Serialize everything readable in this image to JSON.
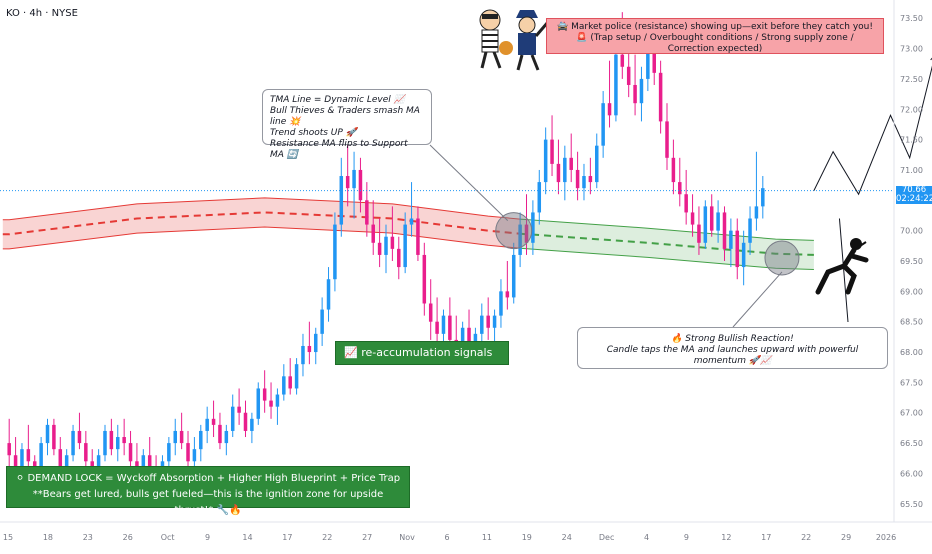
{
  "header": {
    "symbol_label": "KO · 4h · NYSE"
  },
  "annotations": {
    "tma": {
      "lines": [
        "TMA Line = Dynamic Level 📈",
        "Bull Thieves & Traders smash MA line 💥",
        "Trend shoots UP 🚀",
        "Resistance MA flips to Support MA 🔄"
      ]
    },
    "police": {
      "line1": "🚔 Market police (resistance) showing up—exit before they catch you!",
      "line2": "🚨 (Trap setup / Overbought conditions / Strong supply zone / Correction expected)"
    },
    "reaccumulation": {
      "text": "📈 re-accumulation signals next leg."
    },
    "bullish": {
      "line1": "🔥 Strong Bullish Reaction!",
      "line2": "Candle taps the MA and launches upward with powerful momentum 🚀📈"
    },
    "demand": {
      "line1": "⚪ DEMAND LOCK = Wyckoff Absorption + Higher High Blueprint + Price Trap",
      "line2": "**Bears get lured, bulls get fueled—this is the ignition zone for upside thrust!* 🔧🔥"
    }
  },
  "price_tag": {
    "price": "70.66",
    "countdown": "02:24:22"
  },
  "chart_data": {
    "type": "candlestick",
    "title": "KO · 4h · NYSE",
    "y_axis": {
      "side": "right",
      "ylim": [
        65.2,
        73.8
      ],
      "ticks": [
        "65.50",
        "66.00",
        "66.50",
        "67.00",
        "67.50",
        "68.00",
        "68.50",
        "69.00",
        "69.50",
        "70.00",
        "70.50",
        "71.00",
        "71.50",
        "72.00",
        "72.50",
        "73.00",
        "73.50"
      ]
    },
    "x_axis": {
      "ticks": [
        "15",
        "18",
        "23",
        "26",
        "Oct",
        "9",
        "14",
        "17",
        "22",
        "27",
        "Nov",
        "6",
        "11",
        "19",
        "24",
        "Dec",
        "4",
        "9",
        "12",
        "17",
        "22",
        "29",
        "2026"
      ]
    },
    "current_price": 70.66,
    "colors": {
      "up": "#2196f3",
      "down": "#e91e8c",
      "red_band": "#e53935",
      "green_band": "#43a047",
      "price_line": "#2196f3"
    },
    "candles_ohlc": [
      [
        66.5,
        66.9,
        66.1,
        66.3
      ],
      [
        66.3,
        66.6,
        65.9,
        66.0
      ],
      [
        66.0,
        66.5,
        65.9,
        66.4
      ],
      [
        66.4,
        66.8,
        66.1,
        66.2
      ],
      [
        66.2,
        66.3,
        65.9,
        66.1
      ],
      [
        66.1,
        66.6,
        66.0,
        66.5
      ],
      [
        66.5,
        66.9,
        66.3,
        66.8
      ],
      [
        66.8,
        66.9,
        66.3,
        66.4
      ],
      [
        66.4,
        66.6,
        66.0,
        66.1
      ],
      [
        66.1,
        66.4,
        65.9,
        66.3
      ],
      [
        66.3,
        66.8,
        66.2,
        66.7
      ],
      [
        66.7,
        67.0,
        66.4,
        66.5
      ],
      [
        66.5,
        66.7,
        66.1,
        66.2
      ],
      [
        66.2,
        66.4,
        65.8,
        65.9
      ],
      [
        65.9,
        66.4,
        65.8,
        66.3
      ],
      [
        66.3,
        66.8,
        66.2,
        66.7
      ],
      [
        66.7,
        66.9,
        66.3,
        66.4
      ],
      [
        66.4,
        66.8,
        66.2,
        66.6
      ],
      [
        66.6,
        66.9,
        66.3,
        66.5
      ],
      [
        66.5,
        66.7,
        66.1,
        66.2
      ],
      [
        66.2,
        66.5,
        65.9,
        66.0
      ],
      [
        66.0,
        66.4,
        65.9,
        66.3
      ],
      [
        66.3,
        66.6,
        66.0,
        66.1
      ],
      [
        66.1,
        66.3,
        65.8,
        65.9
      ],
      [
        65.9,
        66.3,
        65.8,
        66.2
      ],
      [
        66.2,
        66.6,
        66.0,
        66.5
      ],
      [
        66.5,
        66.9,
        66.3,
        66.7
      ],
      [
        66.7,
        67.0,
        66.4,
        66.5
      ],
      [
        66.5,
        66.7,
        66.1,
        66.2
      ],
      [
        66.2,
        66.6,
        66.0,
        66.4
      ],
      [
        66.4,
        66.8,
        66.2,
        66.7
      ],
      [
        66.7,
        67.1,
        66.5,
        66.9
      ],
      [
        66.9,
        67.2,
        66.6,
        66.8
      ],
      [
        66.8,
        67.0,
        66.4,
        66.5
      ],
      [
        66.5,
        66.8,
        66.3,
        66.7
      ],
      [
        66.7,
        67.3,
        66.6,
        67.1
      ],
      [
        67.1,
        67.4,
        66.8,
        67.0
      ],
      [
        67.0,
        67.2,
        66.6,
        66.7
      ],
      [
        66.7,
        67.0,
        66.5,
        66.9
      ],
      [
        66.9,
        67.5,
        66.8,
        67.4
      ],
      [
        67.4,
        67.7,
        67.0,
        67.2
      ],
      [
        67.2,
        67.5,
        66.9,
        67.1
      ],
      [
        67.1,
        67.4,
        66.8,
        67.3
      ],
      [
        67.3,
        67.8,
        67.2,
        67.6
      ],
      [
        67.6,
        67.9,
        67.3,
        67.4
      ],
      [
        67.4,
        67.9,
        67.3,
        67.8
      ],
      [
        67.8,
        68.3,
        67.6,
        68.1
      ],
      [
        68.1,
        68.5,
        67.8,
        68.0
      ],
      [
        68.0,
        68.4,
        67.8,
        68.3
      ],
      [
        68.3,
        68.9,
        68.1,
        68.7
      ],
      [
        68.7,
        69.4,
        68.5,
        69.2
      ],
      [
        69.2,
        70.3,
        69.0,
        70.1
      ],
      [
        70.1,
        71.2,
        69.9,
        70.9
      ],
      [
        70.9,
        71.5,
        70.4,
        70.7
      ],
      [
        70.7,
        71.3,
        70.2,
        71.0
      ],
      [
        71.0,
        71.2,
        70.3,
        70.5
      ],
      [
        70.5,
        70.8,
        69.9,
        70.1
      ],
      [
        70.1,
        70.5,
        69.6,
        69.8
      ],
      [
        69.8,
        70.2,
        69.4,
        69.6
      ],
      [
        69.6,
        70.1,
        69.3,
        69.9
      ],
      [
        69.9,
        70.4,
        69.5,
        69.7
      ],
      [
        69.7,
        69.9,
        69.2,
        69.4
      ],
      [
        69.4,
        70.3,
        69.3,
        70.1
      ],
      [
        70.1,
        70.8,
        69.9,
        70.2
      ],
      [
        70.2,
        70.4,
        69.5,
        69.6
      ],
      [
        69.6,
        69.8,
        68.6,
        68.8
      ],
      [
        68.8,
        69.2,
        68.2,
        68.5
      ],
      [
        68.5,
        68.9,
        68.0,
        68.3
      ],
      [
        68.3,
        68.7,
        67.9,
        68.6
      ],
      [
        68.6,
        68.9,
        68.1,
        68.2
      ],
      [
        68.2,
        68.6,
        67.8,
        68.0
      ],
      [
        68.0,
        68.5,
        67.9,
        68.4
      ],
      [
        68.4,
        68.7,
        68.0,
        68.1
      ],
      [
        68.1,
        68.4,
        67.9,
        68.3
      ],
      [
        68.3,
        68.8,
        68.1,
        68.6
      ],
      [
        68.6,
        68.9,
        68.2,
        68.4
      ],
      [
        68.4,
        68.7,
        68.1,
        68.6
      ],
      [
        68.6,
        69.2,
        68.4,
        69.0
      ],
      [
        69.0,
        69.5,
        68.7,
        68.9
      ],
      [
        68.9,
        69.8,
        68.8,
        69.6
      ],
      [
        69.6,
        70.3,
        69.4,
        70.1
      ],
      [
        70.1,
        70.6,
        69.6,
        69.8
      ],
      [
        69.8,
        70.5,
        69.6,
        70.3
      ],
      [
        70.3,
        71.0,
        70.1,
        70.8
      ],
      [
        70.8,
        71.7,
        70.6,
        71.5
      ],
      [
        71.5,
        71.9,
        70.9,
        71.1
      ],
      [
        71.1,
        71.5,
        70.6,
        70.8
      ],
      [
        70.8,
        71.4,
        70.5,
        71.2
      ],
      [
        71.2,
        71.6,
        70.8,
        71.0
      ],
      [
        71.0,
        71.3,
        70.5,
        70.7
      ],
      [
        70.7,
        71.1,
        70.5,
        70.9
      ],
      [
        70.9,
        71.2,
        70.6,
        70.8
      ],
      [
        70.8,
        71.6,
        70.7,
        71.4
      ],
      [
        71.4,
        72.3,
        71.2,
        72.1
      ],
      [
        72.1,
        72.8,
        71.7,
        71.9
      ],
      [
        71.9,
        73.1,
        71.8,
        72.9
      ],
      [
        72.9,
        73.6,
        72.5,
        72.7
      ],
      [
        72.7,
        73.2,
        72.2,
        72.4
      ],
      [
        72.4,
        72.9,
        71.9,
        72.1
      ],
      [
        72.1,
        72.7,
        71.8,
        72.5
      ],
      [
        72.5,
        73.3,
        72.3,
        73.0
      ],
      [
        73.0,
        73.4,
        72.4,
        72.6
      ],
      [
        72.6,
        72.8,
        71.6,
        71.8
      ],
      [
        71.8,
        72.1,
        71.0,
        71.2
      ],
      [
        71.2,
        71.5,
        70.6,
        70.8
      ],
      [
        70.8,
        71.2,
        70.4,
        70.6
      ],
      [
        70.6,
        71.0,
        70.1,
        70.3
      ],
      [
        70.3,
        70.6,
        69.9,
        70.1
      ],
      [
        70.1,
        70.4,
        69.6,
        69.8
      ],
      [
        69.8,
        70.5,
        69.7,
        70.4
      ],
      [
        70.4,
        70.6,
        69.9,
        70.0
      ],
      [
        70.0,
        70.5,
        69.8,
        70.3
      ],
      [
        70.3,
        70.4,
        69.5,
        69.7
      ],
      [
        69.7,
        70.2,
        69.4,
        70.0
      ],
      [
        70.0,
        70.2,
        69.2,
        69.4
      ],
      [
        69.4,
        70.0,
        69.1,
        69.8
      ],
      [
        69.8,
        70.4,
        69.6,
        70.2
      ],
      [
        70.2,
        71.3,
        70.0,
        70.4
      ],
      [
        70.4,
        70.9,
        70.2,
        70.7
      ]
    ],
    "moving_averages": [
      {
        "name": "resistance-ma",
        "color": "#e53935",
        "points": [
          [
            0,
            69.94
          ],
          [
            20,
            70.2
          ],
          [
            40,
            70.3
          ],
          [
            60,
            70.2
          ],
          [
            75,
            70.0
          ],
          [
            80,
            69.95
          ]
        ]
      },
      {
        "name": "support-ma",
        "color": "#43a047",
        "points": [
          [
            80,
            69.95
          ],
          [
            100,
            69.8
          ],
          [
            120,
            69.62
          ],
          [
            126,
            69.6
          ]
        ]
      }
    ],
    "projection_path": [
      [
        126,
        70.66
      ],
      [
        129,
        71.3
      ],
      [
        133,
        70.6
      ],
      [
        138,
        71.9
      ],
      [
        141,
        71.2
      ],
      [
        145,
        72.9
      ]
    ],
    "zones_highlighted": [
      "ma-breakout",
      "ma-retest"
    ]
  }
}
